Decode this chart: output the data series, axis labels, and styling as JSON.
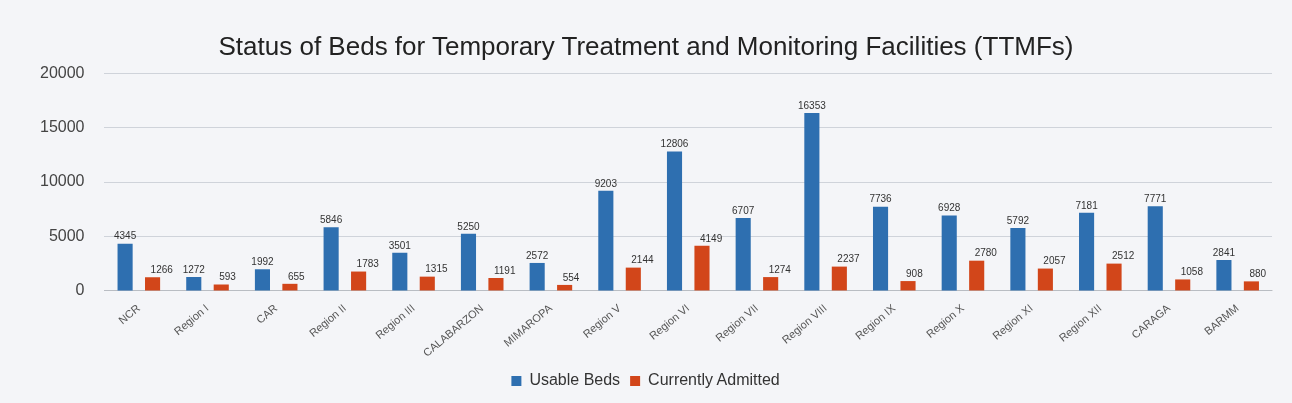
{
  "chart_data": {
    "type": "bar",
    "title": "Status of Beds for Temporary Treatment and Monitoring Facilities (TTMFs)",
    "categories": [
      "NCR",
      "Region I",
      "CAR",
      "Region II",
      "Region III",
      "CALABARZON",
      "MIMAROPA",
      "Region V",
      "Region VI",
      "Region VII",
      "Region VIII",
      "Region IX",
      "Region X",
      "Region XI",
      "Region XII",
      "CARAGA",
      "BARMM"
    ],
    "series": [
      {
        "name": "Usable Beds",
        "color": "#2e6fb0",
        "values": [
          4345,
          1272,
          1992,
          5846,
          3501,
          5250,
          2572,
          9203,
          12806,
          6707,
          16353,
          7736,
          6928,
          5792,
          7181,
          7771,
          2841
        ]
      },
      {
        "name": "Currently Admitted",
        "color": "#d2461a",
        "values": [
          1266,
          593,
          655,
          1783,
          1315,
          1191,
          554,
          2144,
          4149,
          1274,
          2237,
          908,
          2780,
          2057,
          2512,
          1058,
          880
        ]
      }
    ],
    "ylim": [
      0,
      20000
    ],
    "yticks": [
      0,
      5000,
      10000,
      15000,
      20000
    ],
    "grid": "y",
    "legend": "bottom",
    "data_labels": true
  }
}
